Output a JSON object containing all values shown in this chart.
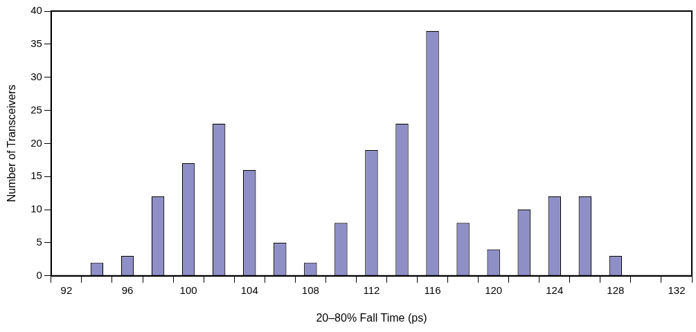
{
  "chart_data": {
    "type": "bar",
    "xlabel": "20–80% Fall Time (ps)",
    "ylabel": "Number of Transceivers",
    "categories": [
      "92",
      null,
      "96",
      null,
      "100",
      null,
      "104",
      null,
      "108",
      null,
      "112",
      null,
      "116",
      null,
      "120",
      null,
      "124",
      null,
      "128",
      null,
      "132"
    ],
    "values": [
      0,
      2,
      3,
      12,
      17,
      23,
      16,
      5,
      2,
      8,
      19,
      23,
      37,
      8,
      4,
      10,
      12,
      12,
      3,
      0,
      0
    ],
    "color": "#8f8fc7",
    "ylim": [
      0,
      40
    ],
    "yticks": [
      0,
      5,
      10,
      15,
      20,
      25,
      30,
      35,
      40
    ],
    "grid": false,
    "legend": false
  }
}
